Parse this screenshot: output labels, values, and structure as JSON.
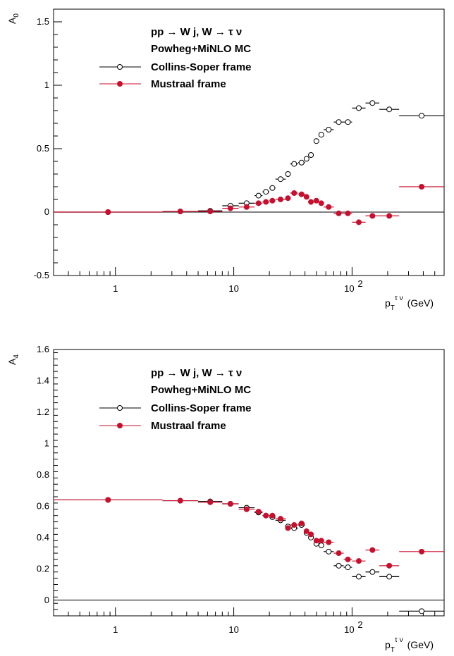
{
  "chart_data": [
    {
      "type": "scatter",
      "ylabel": "A",
      "ylabel_sub": "0",
      "xlabel_main": "p",
      "xlabel_sub": "T",
      "xlabel_sup": "τ ν",
      "xlabel_unit": "(GeV)",
      "xscale": "log",
      "xlim": [
        0.3,
        600
      ],
      "ylim": [
        -0.5,
        1.6
      ],
      "yticks": [
        -0.5,
        0,
        0.5,
        1,
        1.5
      ],
      "ytick_labels": [
        "-0.5",
        "0",
        "0.5",
        "1",
        "1.5"
      ],
      "xtick_labels": [
        "1",
        "10",
        "10",
        "2"
      ],
      "legend": {
        "line1": "pp  → W j, W  →  τ  ν",
        "line2": "Powheg+MiNLO MC",
        "entries": [
          "Collins-Soper frame",
          "Mustraal frame"
        ]
      },
      "series": [
        {
          "name": "Collins-Soper frame",
          "color": "#000000",
          "marker": "open",
          "points": [
            [
              0.3,
              2.5,
              0.0
            ],
            [
              2.5,
              5,
              0.005
            ],
            [
              5,
              8,
              0.01
            ],
            [
              8,
              11,
              0.05
            ],
            [
              11,
              15,
              0.07
            ],
            [
              15,
              17.5,
              0.13
            ],
            [
              17.5,
              20,
              0.16
            ],
            [
              20,
              22.5,
              0.19
            ],
            [
              22.5,
              27.5,
              0.26
            ],
            [
              27.5,
              30,
              0.3
            ],
            [
              30,
              35,
              0.38
            ],
            [
              35,
              40,
              0.39
            ],
            [
              40,
              42.5,
              0.42
            ],
            [
              42.5,
              47.5,
              0.45
            ],
            [
              47.5,
              52.5,
              0.56
            ],
            [
              52.5,
              57.5,
              0.61
            ],
            [
              57.5,
              70,
              0.65
            ],
            [
              70,
              85,
              0.71
            ],
            [
              85,
              100,
              0.71
            ],
            [
              100,
              130,
              0.82
            ],
            [
              130,
              170,
              0.86
            ],
            [
              170,
              250,
              0.81
            ],
            [
              250,
              600,
              0.76
            ]
          ]
        },
        {
          "name": "Mustraal frame",
          "color": "#c8102e",
          "marker": "filled",
          "points": [
            [
              0.3,
              2.5,
              0.0
            ],
            [
              2.5,
              5,
              0.005
            ],
            [
              5,
              8,
              0.005
            ],
            [
              8,
              11,
              0.03
            ],
            [
              11,
              15,
              0.04
            ],
            [
              15,
              17.5,
              0.07
            ],
            [
              17.5,
              20,
              0.08
            ],
            [
              20,
              22.5,
              0.09
            ],
            [
              22.5,
              27.5,
              0.1
            ],
            [
              27.5,
              30,
              0.11
            ],
            [
              30,
              35,
              0.15
            ],
            [
              35,
              40,
              0.14
            ],
            [
              40,
              42.5,
              0.12
            ],
            [
              42.5,
              47.5,
              0.08
            ],
            [
              47.5,
              52.5,
              0.09
            ],
            [
              52.5,
              57.5,
              0.07
            ],
            [
              57.5,
              70,
              0.04
            ],
            [
              70,
              85,
              -0.01
            ],
            [
              85,
              100,
              -0.01
            ],
            [
              100,
              130,
              -0.08
            ],
            [
              130,
              170,
              -0.03
            ],
            [
              170,
              250,
              -0.03
            ],
            [
              250,
              600,
              0.2
            ]
          ]
        }
      ]
    },
    {
      "type": "scatter",
      "ylabel": "A",
      "ylabel_sub": "4",
      "xlabel_main": "p",
      "xlabel_sub": "T",
      "xlabel_sup": "τ ν",
      "xlabel_unit": "(GeV)",
      "xscale": "log",
      "xlim": [
        0.3,
        600
      ],
      "ylim": [
        -0.1,
        1.6
      ],
      "yticks": [
        0,
        0.2,
        0.4,
        0.6,
        0.8,
        1,
        1.2,
        1.4,
        1.6
      ],
      "ytick_labels": [
        "0",
        "0.2",
        "0.4",
        "0.6",
        "0.8",
        "1",
        "1.2",
        "1.4",
        "1.6"
      ],
      "xtick_labels": [
        "1",
        "10",
        "10",
        "2"
      ],
      "legend": {
        "line1": "pp  → W j, W  →  τ  ν",
        "line2": "Powheg+MiNLO MC",
        "entries": [
          "Collins-Soper frame",
          "Mustraal frame"
        ]
      },
      "series": [
        {
          "name": "Collins-Soper frame",
          "color": "#000000",
          "marker": "open",
          "points": [
            [
              0.3,
              2.5,
              0.64
            ],
            [
              2.5,
              5,
              0.635
            ],
            [
              5,
              8,
              0.63
            ],
            [
              8,
              11,
              0.615
            ],
            [
              11,
              15,
              0.59
            ],
            [
              15,
              17.5,
              0.56
            ],
            [
              17.5,
              20,
              0.54
            ],
            [
              20,
              22.5,
              0.53
            ],
            [
              22.5,
              27.5,
              0.51
            ],
            [
              27.5,
              30,
              0.47
            ],
            [
              30,
              35,
              0.46
            ],
            [
              35,
              40,
              0.48
            ],
            [
              40,
              42.5,
              0.43
            ],
            [
              42.5,
              47.5,
              0.4
            ],
            [
              47.5,
              52.5,
              0.36
            ],
            [
              52.5,
              57.5,
              0.35
            ],
            [
              57.5,
              70,
              0.31
            ],
            [
              70,
              85,
              0.22
            ],
            [
              85,
              100,
              0.21
            ],
            [
              100,
              130,
              0.15
            ],
            [
              130,
              170,
              0.18
            ],
            [
              170,
              250,
              0.15
            ],
            [
              250,
              600,
              -0.07
            ]
          ]
        },
        {
          "name": "Mustraal frame",
          "color": "#c8102e",
          "marker": "filled",
          "points": [
            [
              0.3,
              2.5,
              0.64
            ],
            [
              2.5,
              5,
              0.635
            ],
            [
              5,
              8,
              0.625
            ],
            [
              8,
              11,
              0.615
            ],
            [
              11,
              15,
              0.58
            ],
            [
              15,
              17.5,
              0.565
            ],
            [
              17.5,
              20,
              0.54
            ],
            [
              20,
              22.5,
              0.54
            ],
            [
              22.5,
              27.5,
              0.52
            ],
            [
              27.5,
              30,
              0.46
            ],
            [
              30,
              35,
              0.48
            ],
            [
              35,
              40,
              0.49
            ],
            [
              40,
              42.5,
              0.44
            ],
            [
              42.5,
              47.5,
              0.42
            ],
            [
              47.5,
              52.5,
              0.38
            ],
            [
              52.5,
              57.5,
              0.38
            ],
            [
              57.5,
              70,
              0.37
            ],
            [
              70,
              85,
              0.3
            ],
            [
              85,
              100,
              0.26
            ],
            [
              100,
              130,
              0.25
            ],
            [
              130,
              170,
              0.32
            ],
            [
              170,
              250,
              0.22
            ],
            [
              250,
              600,
              0.31
            ]
          ]
        }
      ]
    }
  ]
}
